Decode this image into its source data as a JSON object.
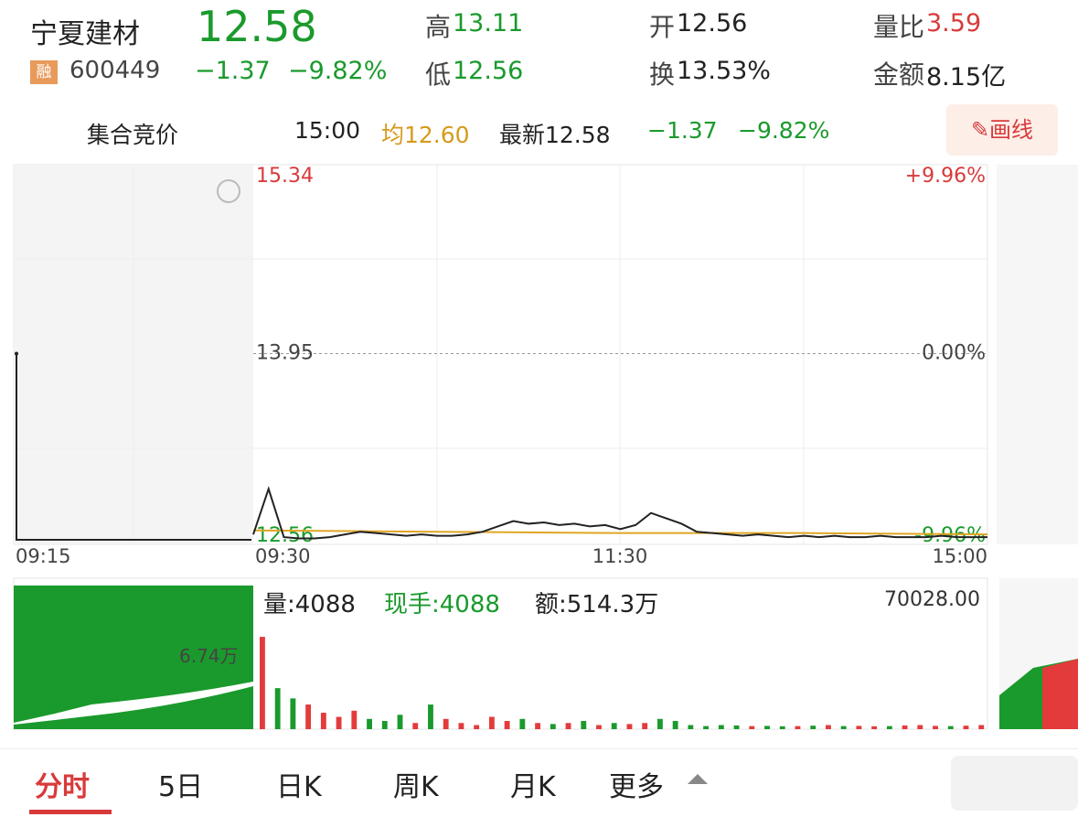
{
  "header": {
    "name": "宁夏建材",
    "price": "12.58",
    "badge": "融",
    "code": "600449",
    "change": "−1.37",
    "change_pct": "−9.82%",
    "stats": [
      {
        "label": "高",
        "value": "13.11"
      },
      {
        "label": "开",
        "value": "12.56"
      },
      {
        "label": "量比",
        "value": "3.59"
      },
      {
        "label": "低",
        "value": "12.56"
      },
      {
        "label": "换",
        "value": "13.53%"
      },
      {
        "label": "金额",
        "value": "8.15亿"
      }
    ]
  },
  "bar": {
    "session": "集合竞价",
    "time": "15:00",
    "avg": "均12.60",
    "latest": "最新12.58",
    "change": "−1.37",
    "change_pct": "−9.82%",
    "button": "画线"
  },
  "chart": {
    "price_ticks": [
      15.34,
      13.95,
      12.56
    ],
    "pct_ticks": [
      "+9.96%",
      "0.00%",
      "-9.96%"
    ],
    "time_labels": [
      "09:15",
      "09:30",
      "11:30",
      "15:00"
    ],
    "auction": [
      13.95,
      12.56,
      12.56
    ],
    "price": [
      12.6,
      12.94,
      12.58,
      12.57,
      12.57,
      12.58,
      12.6,
      12.62,
      12.61,
      12.6,
      12.59,
      12.6,
      12.59,
      12.59,
      12.6,
      12.62,
      12.66,
      12.7,
      12.68,
      12.69,
      12.67,
      12.68,
      12.66,
      12.67,
      12.64,
      12.67,
      12.76,
      12.72,
      12.68,
      12.62,
      12.61,
      12.6,
      12.59,
      12.6,
      12.59,
      12.58,
      12.59,
      12.58,
      12.59,
      12.58,
      12.58,
      12.59,
      12.58,
      12.58,
      12.58,
      12.59,
      12.58,
      12.58,
      12.58
    ],
    "avg_line": [
      12.63,
      12.62,
      12.61,
      12.61,
      12.6
    ],
    "up_color": "#e33b3b",
    "down_color": "#1a9a2c",
    "line_color": "#222222",
    "avg_color": "#e0a524",
    "volume_info": {
      "vol": "量:4088",
      "hand": "现手:4088",
      "amount": "额:514.3万",
      "auction_vol": "6.74万"
    },
    "volume_max": {
      "value": 70028,
      "label": "70028.00"
    },
    "volume": [
      45000,
      20000,
      15000,
      12000,
      8000,
      6000,
      9000,
      5000,
      4000,
      7000,
      3000,
      12000,
      5000,
      3000,
      2000,
      6000,
      4000,
      5000,
      3000,
      2500,
      3000,
      4000,
      2000,
      3000,
      2500,
      3000,
      5000,
      4000,
      2000,
      1500,
      2000,
      1800,
      1500,
      1600,
      1400,
      1500,
      1700,
      2000,
      1500,
      1600,
      1400,
      1500,
      1800,
      2000,
      1600,
      1500,
      1700,
      2000
    ]
  },
  "tabs": [
    "分时",
    "5日",
    "日K",
    "周K",
    "月K",
    "更多"
  ]
}
